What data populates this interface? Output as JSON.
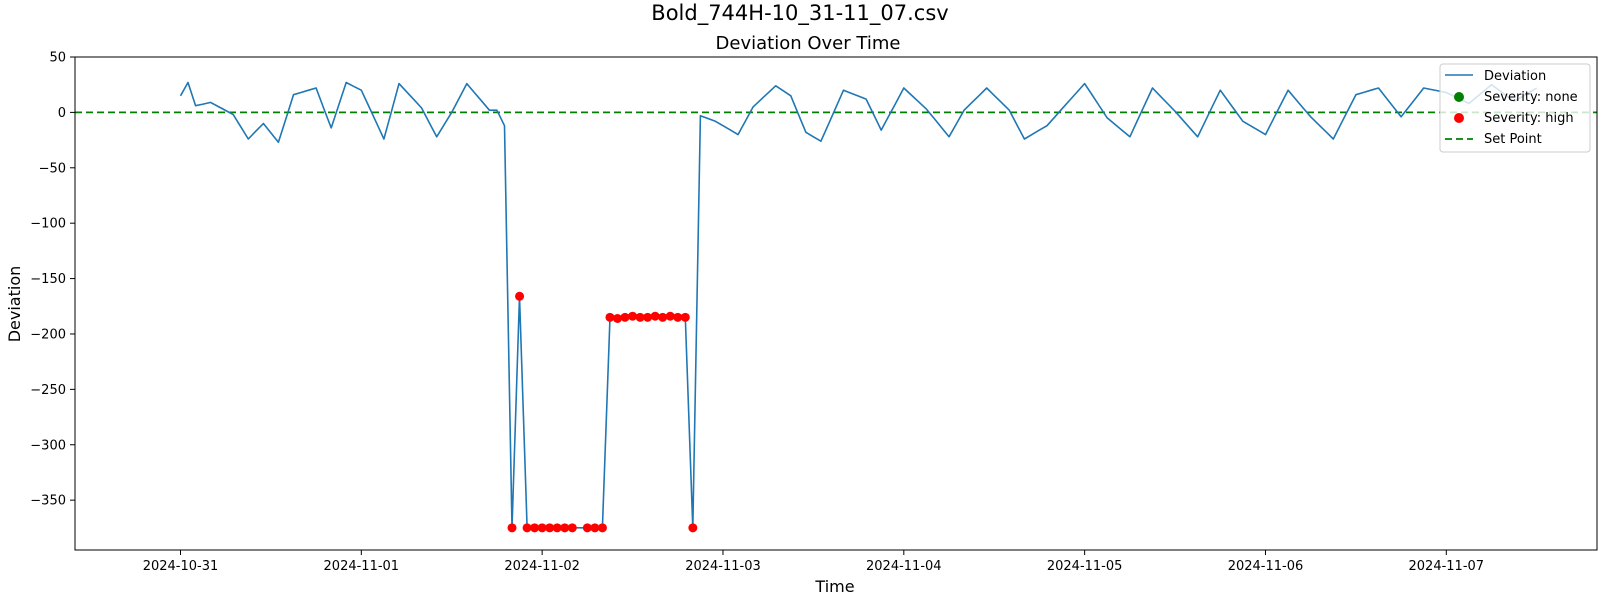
{
  "figure_title": "Bold_744H-10_31-11_07.csv",
  "colors": {
    "deviation_line": "#1f77b4",
    "severity_none": "#008000",
    "severity_high": "#ff0000",
    "set_point": "#008000"
  },
  "chart_data": {
    "type": "line",
    "title": "Deviation Over Time",
    "xlabel": "Time",
    "ylabel": "Deviation",
    "xlim": [
      "2024-10-30T10:00",
      "2024-11-07T20:00"
    ],
    "ylim": [
      -395,
      50
    ],
    "x_ticks": [
      "2024-10-31",
      "2024-11-01",
      "2024-11-02",
      "2024-11-03",
      "2024-11-04",
      "2024-11-05",
      "2024-11-06",
      "2024-11-07"
    ],
    "y_ticks": [
      50,
      0,
      -50,
      -100,
      -150,
      -200,
      -250,
      -300,
      -350
    ],
    "y_tick_labels": [
      "50",
      "0",
      "−50",
      "−100",
      "−150",
      "−200",
      "−250",
      "−300",
      "−350"
    ],
    "grid": false,
    "legend_location": "upper right",
    "set_point": 0,
    "sampling": "hourly",
    "series": [
      {
        "name": "Deviation",
        "style": "line",
        "anchors": [
          [
            "2024-10-31T00:00",
            15
          ],
          [
            "2024-10-31T01:00",
            27
          ],
          [
            "2024-10-31T02:00",
            6
          ],
          [
            "2024-10-31T04:00",
            9
          ],
          [
            "2024-10-31T07:00",
            -2
          ],
          [
            "2024-10-31T09:00",
            -24
          ],
          [
            "2024-10-31T11:00",
            -10
          ],
          [
            "2024-10-31T13:00",
            -27
          ],
          [
            "2024-10-31T15:00",
            16
          ],
          [
            "2024-10-31T18:00",
            22
          ],
          [
            "2024-10-31T20:00",
            -14
          ],
          [
            "2024-10-31T22:00",
            27
          ],
          [
            "2024-11-01T00:00",
            20
          ],
          [
            "2024-11-01T03:00",
            -24
          ],
          [
            "2024-11-01T05:00",
            26
          ],
          [
            "2024-11-01T08:00",
            4
          ],
          [
            "2024-11-01T10:00",
            -22
          ],
          [
            "2024-11-01T12:00",
            0
          ],
          [
            "2024-11-01T14:00",
            26
          ],
          [
            "2024-11-01T17:00",
            2
          ],
          [
            "2024-11-01T18:00",
            2
          ],
          [
            "2024-11-01T19:00",
            -12
          ],
          [
            "2024-11-01T20:00",
            -375
          ],
          [
            "2024-11-01T21:00",
            -166
          ],
          [
            "2024-11-01T22:00",
            -375
          ],
          [
            "2024-11-02T08:00",
            -375
          ],
          [
            "2024-11-02T09:00",
            -185
          ],
          [
            "2024-11-02T19:00",
            -185
          ],
          [
            "2024-11-02T20:00",
            -375
          ],
          [
            "2024-11-02T21:00",
            -3
          ],
          [
            "2024-11-02T23:00",
            -8
          ],
          [
            "2024-11-03T02:00",
            -20
          ],
          [
            "2024-11-03T04:00",
            5
          ],
          [
            "2024-11-03T07:00",
            24
          ],
          [
            "2024-11-03T09:00",
            15
          ],
          [
            "2024-11-03T11:00",
            -18
          ],
          [
            "2024-11-03T13:00",
            -26
          ],
          [
            "2024-11-03T16:00",
            20
          ],
          [
            "2024-11-03T19:00",
            12
          ],
          [
            "2024-11-03T21:00",
            -16
          ],
          [
            "2024-11-04T00:00",
            22
          ],
          [
            "2024-11-04T03:00",
            3
          ],
          [
            "2024-11-04T06:00",
            -22
          ],
          [
            "2024-11-04T08:00",
            2
          ],
          [
            "2024-11-04T11:00",
            22
          ],
          [
            "2024-11-04T14:00",
            2
          ],
          [
            "2024-11-04T16:00",
            -24
          ],
          [
            "2024-11-04T19:00",
            -12
          ],
          [
            "2024-11-05T00:00",
            26
          ],
          [
            "2024-11-05T03:00",
            -5
          ],
          [
            "2024-11-05T06:00",
            -22
          ],
          [
            "2024-11-05T09:00",
            22
          ],
          [
            "2024-11-05T12:00",
            1
          ],
          [
            "2024-11-05T15:00",
            -22
          ],
          [
            "2024-11-05T18:00",
            20
          ],
          [
            "2024-11-05T21:00",
            -8
          ],
          [
            "2024-11-06T00:00",
            -20
          ],
          [
            "2024-11-06T03:00",
            20
          ],
          [
            "2024-11-06T06:00",
            -4
          ],
          [
            "2024-11-06T09:00",
            -24
          ],
          [
            "2024-11-06T12:00",
            16
          ],
          [
            "2024-11-06T15:00",
            22
          ],
          [
            "2024-11-06T18:00",
            -4
          ],
          [
            "2024-11-06T21:00",
            22
          ],
          [
            "2024-11-07T00:00",
            18
          ],
          [
            "2024-11-07T03:00",
            8
          ],
          [
            "2024-11-07T06:00",
            25
          ],
          [
            "2024-11-07T09:00",
            10
          ],
          [
            "2024-11-07T12:00",
            22
          ]
        ]
      },
      {
        "name": "Severity: none",
        "style": "scatter",
        "points": []
      },
      {
        "name": "Severity: high",
        "style": "scatter",
        "points": [
          [
            "2024-11-01T20:00",
            -375
          ],
          [
            "2024-11-01T21:00",
            -166
          ],
          [
            "2024-11-01T22:00",
            -375
          ],
          [
            "2024-11-01T23:00",
            -375
          ],
          [
            "2024-11-02T00:00",
            -375
          ],
          [
            "2024-11-02T01:00",
            -375
          ],
          [
            "2024-11-02T02:00",
            -375
          ],
          [
            "2024-11-02T03:00",
            -375
          ],
          [
            "2024-11-02T04:00",
            -375
          ],
          [
            "2024-11-02T06:00",
            -375
          ],
          [
            "2024-11-02T07:00",
            -375
          ],
          [
            "2024-11-02T08:00",
            -375
          ],
          [
            "2024-11-02T09:00",
            -185
          ],
          [
            "2024-11-02T10:00",
            -186
          ],
          [
            "2024-11-02T11:00",
            -185
          ],
          [
            "2024-11-02T12:00",
            -184
          ],
          [
            "2024-11-02T13:00",
            -185
          ],
          [
            "2024-11-02T14:00",
            -185
          ],
          [
            "2024-11-02T15:00",
            -184
          ],
          [
            "2024-11-02T16:00",
            -185
          ],
          [
            "2024-11-02T17:00",
            -184
          ],
          [
            "2024-11-02T18:00",
            -185
          ],
          [
            "2024-11-02T19:00",
            -185
          ],
          [
            "2024-11-02T20:00",
            -375
          ]
        ]
      },
      {
        "name": "Set Point",
        "style": "hline",
        "value": 0
      }
    ]
  }
}
